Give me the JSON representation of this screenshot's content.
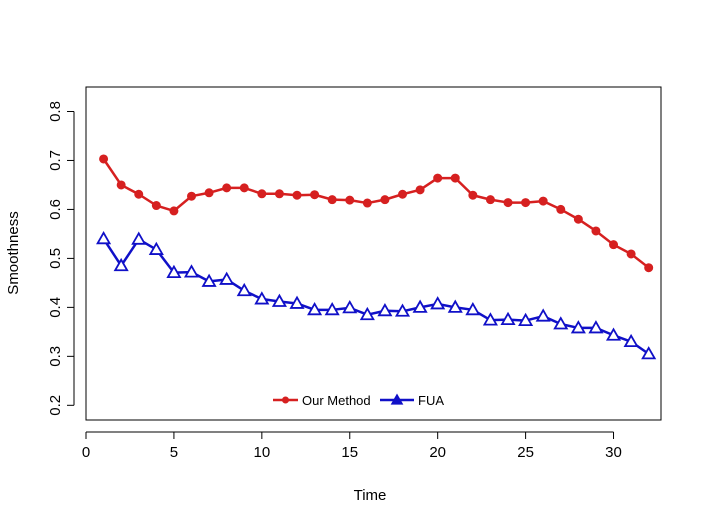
{
  "chart_data": {
    "type": "line",
    "xlabel": "Time",
    "ylabel": "Smoothness",
    "xlim": [
      0,
      32.7
    ],
    "ylim": [
      0.17,
      0.85
    ],
    "xticks": [
      0,
      5,
      10,
      15,
      20,
      25,
      30
    ],
    "yticks": [
      0.2,
      0.3,
      0.4,
      0.5,
      0.6,
      0.7,
      0.8
    ],
    "xtick_labels": [
      "0",
      "5",
      "10",
      "15",
      "20",
      "25",
      "30"
    ],
    "ytick_labels": [
      "0.2",
      "0.3",
      "0.4",
      "0.5",
      "0.6",
      "0.7",
      "0.8"
    ],
    "legend_position": "bottom-center",
    "x": [
      1,
      2,
      3,
      4,
      5,
      6,
      7,
      8,
      9,
      10,
      11,
      12,
      13,
      14,
      15,
      16,
      17,
      18,
      19,
      20,
      21,
      22,
      23,
      24,
      25,
      26,
      27,
      28,
      29,
      30,
      31,
      32
    ],
    "series": [
      {
        "name": "Our Method",
        "color": "#d62020",
        "marker": "filled-circle",
        "values": [
          0.703,
          0.65,
          0.631,
          0.608,
          0.597,
          0.627,
          0.634,
          0.644,
          0.644,
          0.632,
          0.632,
          0.629,
          0.63,
          0.62,
          0.619,
          0.613,
          0.62,
          0.631,
          0.64,
          0.664,
          0.664,
          0.629,
          0.62,
          0.614,
          0.614,
          0.617,
          0.6,
          0.58,
          0.556,
          0.528,
          0.509,
          0.481
        ]
      },
      {
        "name": "FUA",
        "color": "#1010c8",
        "marker": "open-triangle",
        "values": [
          0.54,
          0.485,
          0.539,
          0.518,
          0.471,
          0.472,
          0.453,
          0.457,
          0.434,
          0.417,
          0.412,
          0.408,
          0.395,
          0.395,
          0.399,
          0.385,
          0.393,
          0.392,
          0.4,
          0.407,
          0.4,
          0.395,
          0.374,
          0.375,
          0.373,
          0.382,
          0.366,
          0.358,
          0.358,
          0.343,
          0.33,
          0.305
        ]
      }
    ]
  }
}
